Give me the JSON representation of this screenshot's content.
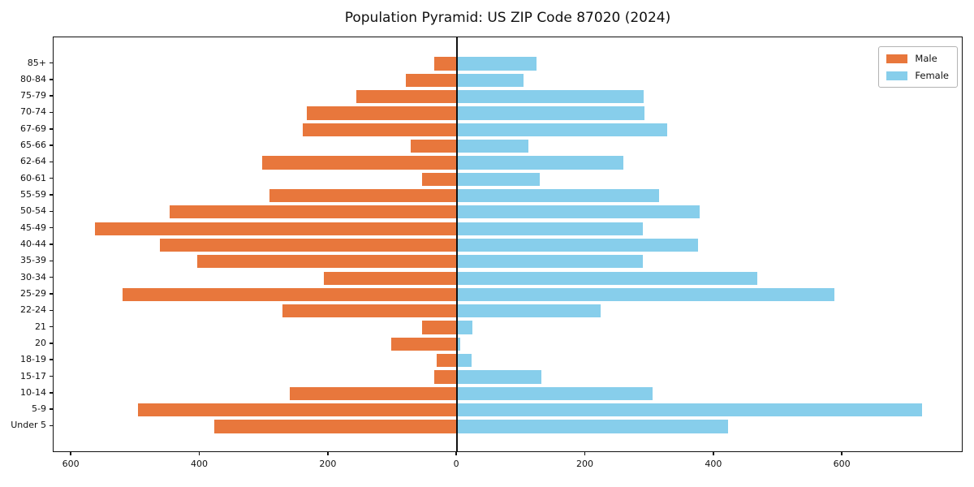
{
  "title": "Population Pyramid: US ZIP Code 87020 (2024)",
  "legend": {
    "male_label": "Male",
    "female_label": "Female"
  },
  "colors": {
    "male": "#E8773C",
    "female": "#87CEEB",
    "axis": "#111111",
    "zero_line": "#111111",
    "legend_border": "#b3b3b3"
  },
  "chart_data": {
    "type": "bar",
    "subtype": "population-pyramid",
    "title": "Population Pyramid: US ZIP Code 87020 (2024)",
    "orientation": "horizontal",
    "categories_top_to_bottom": [
      "85+",
      "80-84",
      "75-79",
      "70-74",
      "67-69",
      "65-66",
      "62-64",
      "60-61",
      "55-59",
      "50-54",
      "45-49",
      "40-44",
      "35-39",
      "30-34",
      "25-29",
      "22-24",
      "21",
      "20",
      "18-19",
      "15-17",
      "10-14",
      "5-9",
      "Under 5"
    ],
    "series": [
      {
        "name": "Male",
        "side": "left",
        "color": "#E8773C",
        "values": [
          35,
          80,
          157,
          234,
          240,
          72,
          303,
          55,
          292,
          448,
          564,
          463,
          405,
          207,
          521,
          272,
          55,
          103,
          32,
          35,
          260,
          497,
          378
        ]
      },
      {
        "name": "Female",
        "side": "right",
        "color": "#87CEEB",
        "values": [
          124,
          104,
          290,
          291,
          327,
          111,
          259,
          129,
          314,
          378,
          289,
          375,
          289,
          467,
          587,
          224,
          24,
          5,
          23,
          131,
          304,
          724,
          422
        ]
      }
    ],
    "xlabel": "",
    "ylabel": "",
    "xlim": [
      -628,
      788
    ],
    "x_tick_values": [
      -600,
      -400,
      -200,
      0,
      200,
      400,
      600
    ],
    "x_tick_labels": [
      "600",
      "400",
      "200",
      "0",
      "200",
      "400",
      "600"
    ],
    "grid": false,
    "legend_position": "upper-right",
    "bar_height_fraction": 0.8
  }
}
